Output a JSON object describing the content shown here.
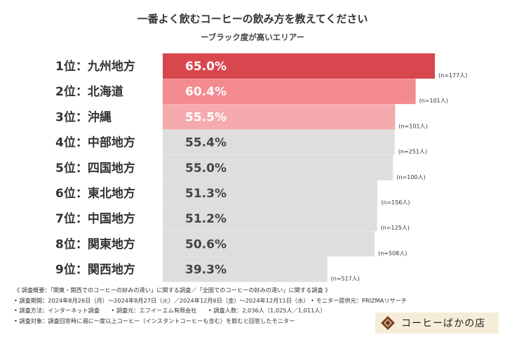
{
  "title": "一番よく飲むコーヒーの飲み方を教えてください",
  "subtitle": "ーブラック度が高いエリアー",
  "chart_data": {
    "type": "bar",
    "orientation": "horizontal",
    "title": "一番よく飲むコーヒーの飲み方を教えてください",
    "subtitle": "ーブラック度が高いエリアー",
    "xlim": [
      0,
      100
    ],
    "categories": [
      "1位：九州地方",
      "2位：北海道",
      "3位：沖縄",
      "4位：中部地方",
      "5位：四国地方",
      "6位：東北地方",
      "7位：中国地方",
      "8位：関東地方",
      "9位：関西地方"
    ],
    "values": [
      65.0,
      60.4,
      55.5,
      55.4,
      55.0,
      51.3,
      51.2,
      50.6,
      39.3
    ],
    "value_labels": [
      "65.0%",
      "60.4%",
      "55.5%",
      "55.4%",
      "55.0%",
      "51.3%",
      "51.2%",
      "50.6%",
      "39.3%"
    ],
    "sample_sizes": [
      "(n=177人)",
      "(n=101人)",
      "(n=101人)",
      "(n=251人)",
      "(n=100人)",
      "(n=156人)",
      "(n=125人)",
      "(n=508人)",
      "(n=517人)"
    ],
    "bar_colors": [
      "#d8474e",
      "#f28a8f",
      "#f5aaad",
      "#dedede",
      "#dedede",
      "#dedede",
      "#dedede",
      "#dedede",
      "#dedede"
    ],
    "label_colors": [
      "#ffffff",
      "#ffffff",
      "#ffffff",
      "#444444",
      "#444444",
      "#444444",
      "#444444",
      "#444444",
      "#444444"
    ]
  },
  "footer": {
    "lines": [
      "《 調査概要：「関東・関西でのコーヒーの好みの違い」に関する調査／「全国でのコーヒーの好みの違い」に関する調査 》",
      "• 調査期間：2024年8月26日（月）〜2024年8月27日（火）／2024年12月6日（金）〜2024年12月11日（水） • モニター提供元：PRIZMAリサーチ",
      "• 調査方法：インターネット調査　　• 調査元：エフイーエム有限会社　　• 調査人数：2,036人（1,025人／1,011人）",
      "• 調査対象：調査回答時に週に一度以上コーヒー（インスタントコーヒーも含む）を飲むと回答したモニター"
    ]
  },
  "brand": {
    "name": "コーヒーばかの店",
    "bg_color": "#f5edd8",
    "logo_color": "#7a3b1c"
  }
}
